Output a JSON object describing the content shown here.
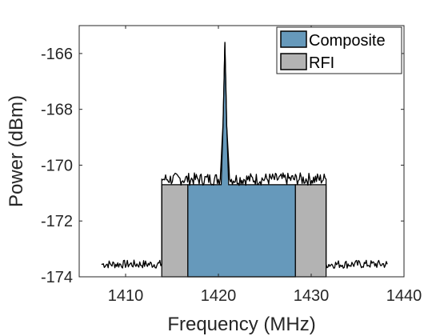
{
  "chart_data": {
    "type": "area",
    "xlabel": "Frequency (MHz)",
    "ylabel": "Power (dBm)",
    "xlim": [
      1405,
      1440
    ],
    "ylim": [
      -174,
      -165
    ],
    "x_ticks": [
      1410,
      1420,
      1430,
      1440
    ],
    "y_ticks": [
      -174,
      -172,
      -170,
      -168,
      -166
    ],
    "legend_position": "top-right",
    "grid": false,
    "series": [
      {
        "name": "Composite",
        "color": "#6699bb",
        "baseline": -174,
        "x": [
          1416.7,
          1416.7,
          1420.3,
          1420.5,
          1420.7,
          1420.9,
          1421.1,
          1428.3,
          1428.3
        ],
        "y": [
          -174,
          -170.7,
          -170.7,
          -168.6,
          -165.6,
          -168.6,
          -170.7,
          -170.7,
          -174
        ]
      },
      {
        "name": "RFI",
        "color": "#b3b3b3",
        "baseline": -174,
        "x": [
          1413.9,
          1413.9,
          1416.7,
          1416.7,
          1428.3,
          1428.3,
          1431.6,
          1431.6
        ],
        "y": [
          -174,
          -170.7,
          -170.7,
          -174,
          -174,
          -170.7,
          -170.7,
          -174
        ]
      }
    ],
    "trace": {
      "color": "#000000",
      "x": [
        1407.4,
        1413.9,
        1413.9,
        1420.2,
        1420.5,
        1420.7,
        1420.9,
        1421.2,
        1431.6,
        1431.6,
        1438.2
      ],
      "y": [
        -173.55,
        -173.55,
        -170.5,
        -170.5,
        -168.5,
        -165.6,
        -168.6,
        -170.5,
        -170.5,
        -173.55,
        -173.55
      ]
    }
  }
}
